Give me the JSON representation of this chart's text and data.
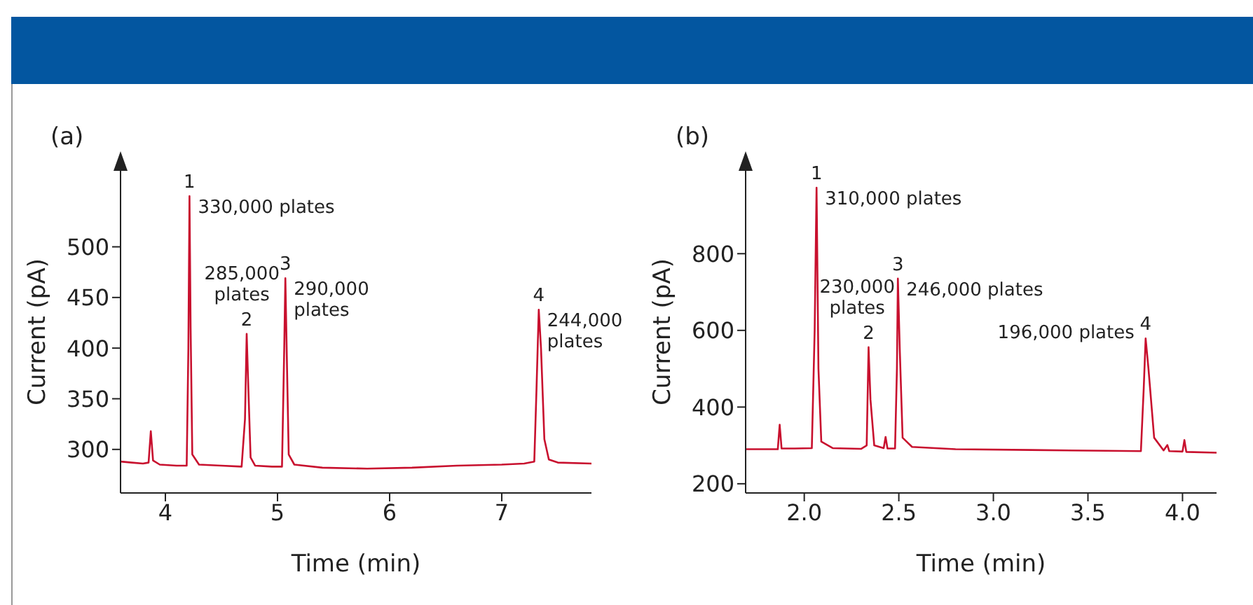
{
  "chart_data": [
    {
      "type": "line",
      "title": "(a)",
      "xlabel": "Time (min)",
      "ylabel": "Current (pA)",
      "xlim": [
        3.6,
        7.8
      ],
      "xticks": [
        4,
        5,
        6,
        7
      ],
      "ylim": [
        257,
        575
      ],
      "yticks": [
        300,
        350,
        400,
        450,
        500
      ],
      "grid": false,
      "legend": false,
      "x": [
        3.6,
        3.7,
        3.8,
        3.85,
        3.87,
        3.89,
        3.95,
        4.1,
        4.19,
        4.205,
        4.215,
        4.225,
        4.24,
        4.3,
        4.5,
        4.68,
        4.71,
        4.725,
        4.74,
        4.76,
        4.8,
        4.95,
        5.04,
        5.06,
        5.07,
        5.085,
        5.1,
        5.15,
        5.4,
        5.8,
        6.2,
        6.6,
        7.0,
        7.2,
        7.29,
        7.31,
        7.33,
        7.35,
        7.38,
        7.42,
        7.5,
        7.8
      ],
      "series": [
        {
          "color": "#c8102e",
          "values": [
            288,
            287,
            286,
            287,
            318,
            289,
            285,
            284,
            284,
            400,
            550,
            420,
            295,
            285,
            284,
            283,
            330,
            414,
            360,
            292,
            284,
            283,
            283,
            400,
            469,
            380,
            295,
            285,
            282,
            281,
            282,
            284,
            285,
            286,
            288,
            360,
            438,
            400,
            310,
            290,
            287,
            286
          ]
        }
      ],
      "annotations": [
        {
          "text": "1",
          "x": 4.215,
          "y": 550
        },
        {
          "text": "330,000 plates",
          "x": 4.215,
          "y": 550
        },
        {
          "text": "2",
          "x": 4.725,
          "y": 414
        },
        {
          "text": "285,000\nplates",
          "x": 4.725,
          "y": 414
        },
        {
          "text": "3",
          "x": 5.07,
          "y": 469
        },
        {
          "text": "290,000\nplates",
          "x": 5.07,
          "y": 469
        },
        {
          "text": "4",
          "x": 7.33,
          "y": 438
        },
        {
          "text": "244,000\nplates",
          "x": 7.33,
          "y": 438
        }
      ]
    },
    {
      "type": "line",
      "title": "(b)",
      "xlabel": "Time (min)",
      "ylabel": "Current (pA)",
      "xlim": [
        1.69,
        4.18
      ],
      "xticks": [
        {
          "value": 2,
          "label": "2.0"
        },
        2.5,
        {
          "value": 3,
          "label": "3.0"
        },
        3.5,
        {
          "value": 4,
          "label": "4.0"
        }
      ],
      "ylim": [
        176,
        1016
      ],
      "yticks": [
        200,
        400,
        600,
        800
      ],
      "grid": false,
      "legend": false,
      "x": [
        1.69,
        1.8,
        1.86,
        1.87,
        1.88,
        1.95,
        2.04,
        2.055,
        2.065,
        2.075,
        2.09,
        2.15,
        2.3,
        2.33,
        2.34,
        2.35,
        2.37,
        2.42,
        2.43,
        2.44,
        2.48,
        2.49,
        2.495,
        2.505,
        2.52,
        2.57,
        2.8,
        3.2,
        3.6,
        3.78,
        3.795,
        3.805,
        3.82,
        3.85,
        3.9,
        3.92,
        3.93,
        4.0,
        4.01,
        4.02,
        4.18
      ],
      "series": [
        {
          "color": "#c8102e",
          "values": [
            290,
            290,
            290,
            354,
            292,
            292,
            293,
            600,
            972,
            500,
            310,
            293,
            291,
            300,
            556,
            420,
            300,
            293,
            322,
            292,
            292,
            500,
            735,
            550,
            320,
            296,
            290,
            288,
            286,
            285,
            450,
            579,
            500,
            320,
            287,
            301,
            285,
            284,
            314,
            283,
            281
          ]
        }
      ],
      "annotations": [
        {
          "text": "1",
          "x": 2.065,
          "y": 972
        },
        {
          "text": "310,000 plates",
          "x": 2.065,
          "y": 972
        },
        {
          "text": "2",
          "x": 2.34,
          "y": 556
        },
        {
          "text": "230,000\nplates",
          "x": 2.34,
          "y": 556
        },
        {
          "text": "3",
          "x": 2.495,
          "y": 735
        },
        {
          "text": "246,000 plates",
          "x": 2.495,
          "y": 735
        },
        {
          "text": "4",
          "x": 3.805,
          "y": 579
        },
        {
          "text": "196,000 plates",
          "x": 3.805,
          "y": 579
        }
      ]
    }
  ]
}
